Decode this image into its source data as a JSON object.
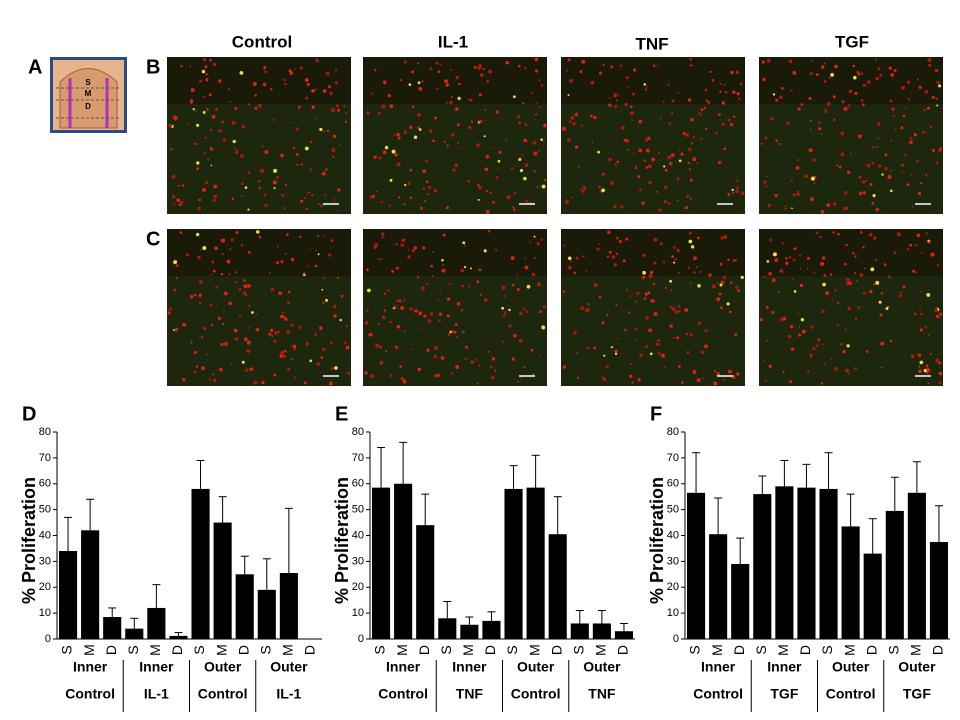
{
  "panel_labels": [
    "A",
    "B",
    "C"
  ],
  "column_titles": [
    "Control",
    "IL-1",
    "TNF",
    "TGF"
  ],
  "inset_labels": [
    "S",
    "M",
    "D"
  ],
  "chart_data": [
    {
      "type": "bar",
      "panel": "D",
      "ylabel": "% Proliferation",
      "color": "#000000",
      "categories": [
        "S",
        "M",
        "D",
        "S",
        "M",
        "D",
        "S",
        "M",
        "D",
        "S",
        "M",
        "D"
      ],
      "values": [
        34,
        42,
        8.5,
        4,
        12,
        1.2,
        58,
        45,
        25,
        19,
        25.5,
        0
      ],
      "errors": [
        13,
        12,
        3.5,
        4,
        9,
        1.3,
        11,
        10,
        7,
        12,
        25,
        0
      ],
      "regions": [
        "Inner",
        "Inner",
        "Outer",
        "Outer"
      ],
      "treatments": [
        "Control",
        "IL-1",
        "Control",
        "IL-1"
      ],
      "ylim": [
        0,
        80
      ],
      "yticks": [
        0,
        10,
        20,
        30,
        40,
        50,
        60,
        70,
        80
      ]
    },
    {
      "type": "bar",
      "panel": "E",
      "ylabel": "% Proliferation",
      "color": "#000000",
      "categories": [
        "S",
        "M",
        "D",
        "S",
        "M",
        "D",
        "S",
        "M",
        "D",
        "S",
        "M",
        "D"
      ],
      "values": [
        58.5,
        60,
        44,
        8,
        5.5,
        7,
        58,
        58.5,
        40.5,
        6,
        6,
        3
      ],
      "errors": [
        15.5,
        16,
        12,
        6.5,
        3,
        3.5,
        9,
        12.5,
        14.5,
        5,
        5,
        3
      ],
      "regions": [
        "Inner",
        "Inner",
        "Outer",
        "Outer"
      ],
      "treatments": [
        "Control",
        "TNF",
        "Control",
        "TNF"
      ],
      "ylim": [
        0,
        80
      ],
      "yticks": [
        0,
        10,
        20,
        30,
        40,
        50,
        60,
        70,
        80
      ]
    },
    {
      "type": "bar",
      "panel": "F",
      "ylabel": "% Proliferation",
      "color": "#000000",
      "categories": [
        "S",
        "M",
        "D",
        "S",
        "M",
        "D",
        "S",
        "M",
        "D",
        "S",
        "M",
        "D"
      ],
      "values": [
        56.5,
        40.5,
        29,
        56,
        59,
        58.5,
        58,
        43.5,
        33,
        49.5,
        56.5,
        37.5
      ],
      "errors": [
        15.5,
        14,
        10,
        7,
        10,
        9,
        14,
        12.5,
        13.5,
        13,
        12,
        14
      ],
      "regions": [
        "Inner",
        "Inner",
        "Outer",
        "Outer"
      ],
      "treatments": [
        "Control",
        "TGF",
        "Control",
        "TGF"
      ],
      "ylim": [
        0,
        80
      ],
      "yticks": [
        0,
        10,
        20,
        30,
        40,
        50,
        60,
        70,
        80
      ]
    }
  ]
}
